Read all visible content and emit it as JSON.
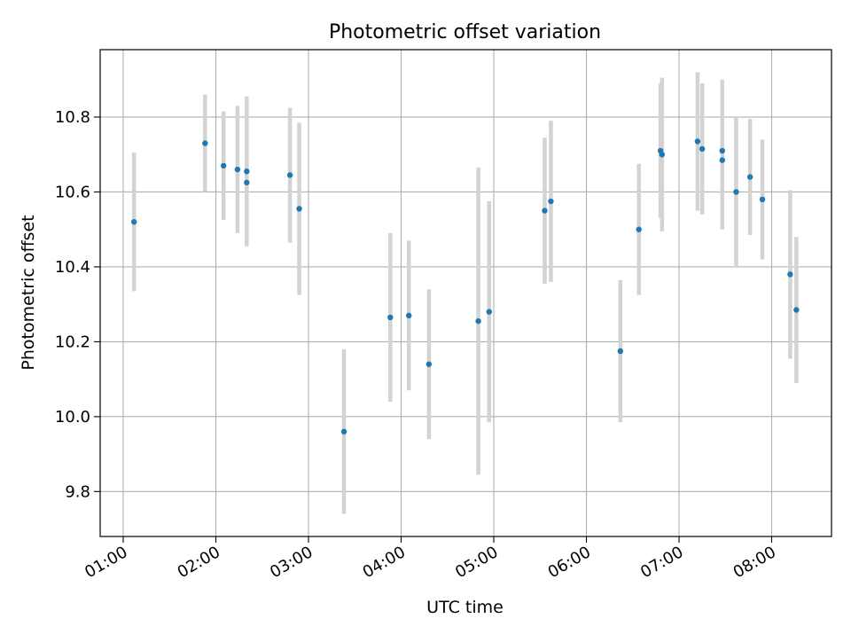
{
  "chart_data": {
    "type": "scatter",
    "title": "Photometric offset variation",
    "xlabel": "UTC time",
    "ylabel": "Photometric offset",
    "x_tick_labels": [
      "01:00",
      "02:00",
      "03:00",
      "04:00",
      "05:00",
      "06:00",
      "07:00",
      "08:00"
    ],
    "y_tick_labels": [
      "9.8",
      "10.0",
      "10.2",
      "10.4",
      "10.6",
      "10.8"
    ],
    "ylim": [
      9.68,
      10.98
    ],
    "grid": true,
    "series": [
      {
        "marker_color": "#1f77b4",
        "errorbar_color": "#d3d3d3",
        "points": [
          {
            "t": "01:07",
            "y": 10.52,
            "err": 0.185
          },
          {
            "t": "01:53",
            "y": 10.73,
            "err": 0.13
          },
          {
            "t": "02:05",
            "y": 10.67,
            "err": 0.145
          },
          {
            "t": "02:14",
            "y": 10.66,
            "err": 0.17
          },
          {
            "t": "02:20",
            "y": 10.655,
            "err": 0.2
          },
          {
            "t": "02:20",
            "y": 10.625,
            "err": 0.0
          },
          {
            "t": "02:48",
            "y": 10.645,
            "err": 0.18
          },
          {
            "t": "02:54",
            "y": 10.555,
            "err": 0.23
          },
          {
            "t": "03:23",
            "y": 9.96,
            "err": 0.22
          },
          {
            "t": "03:53",
            "y": 10.265,
            "err": 0.225
          },
          {
            "t": "04:05",
            "y": 10.27,
            "err": 0.2
          },
          {
            "t": "04:18",
            "y": 10.14,
            "err": 0.2
          },
          {
            "t": "04:50",
            "y": 10.255,
            "err": 0.41
          },
          {
            "t": "04:57",
            "y": 10.28,
            "err": 0.295
          },
          {
            "t": "05:33",
            "y": 10.55,
            "err": 0.195
          },
          {
            "t": "05:37",
            "y": 10.575,
            "err": 0.215
          },
          {
            "t": "06:22",
            "y": 10.175,
            "err": 0.19
          },
          {
            "t": "06:34",
            "y": 10.5,
            "err": 0.175
          },
          {
            "t": "06:48",
            "y": 10.71,
            "err": 0.18
          },
          {
            "t": "06:49",
            "y": 10.7,
            "err": 0.205
          },
          {
            "t": "07:12",
            "y": 10.735,
            "err": 0.185
          },
          {
            "t": "07:15",
            "y": 10.715,
            "err": 0.175
          },
          {
            "t": "07:28",
            "y": 10.71,
            "err": 0.19
          },
          {
            "t": "07:28",
            "y": 10.685,
            "err": 0.185
          },
          {
            "t": "07:37",
            "y": 10.6,
            "err": 0.2
          },
          {
            "t": "07:46",
            "y": 10.64,
            "err": 0.155
          },
          {
            "t": "07:54",
            "y": 10.58,
            "err": 0.16
          },
          {
            "t": "08:12",
            "y": 10.38,
            "err": 0.225
          },
          {
            "t": "08:16",
            "y": 10.285,
            "err": 0.195
          }
        ]
      }
    ]
  }
}
